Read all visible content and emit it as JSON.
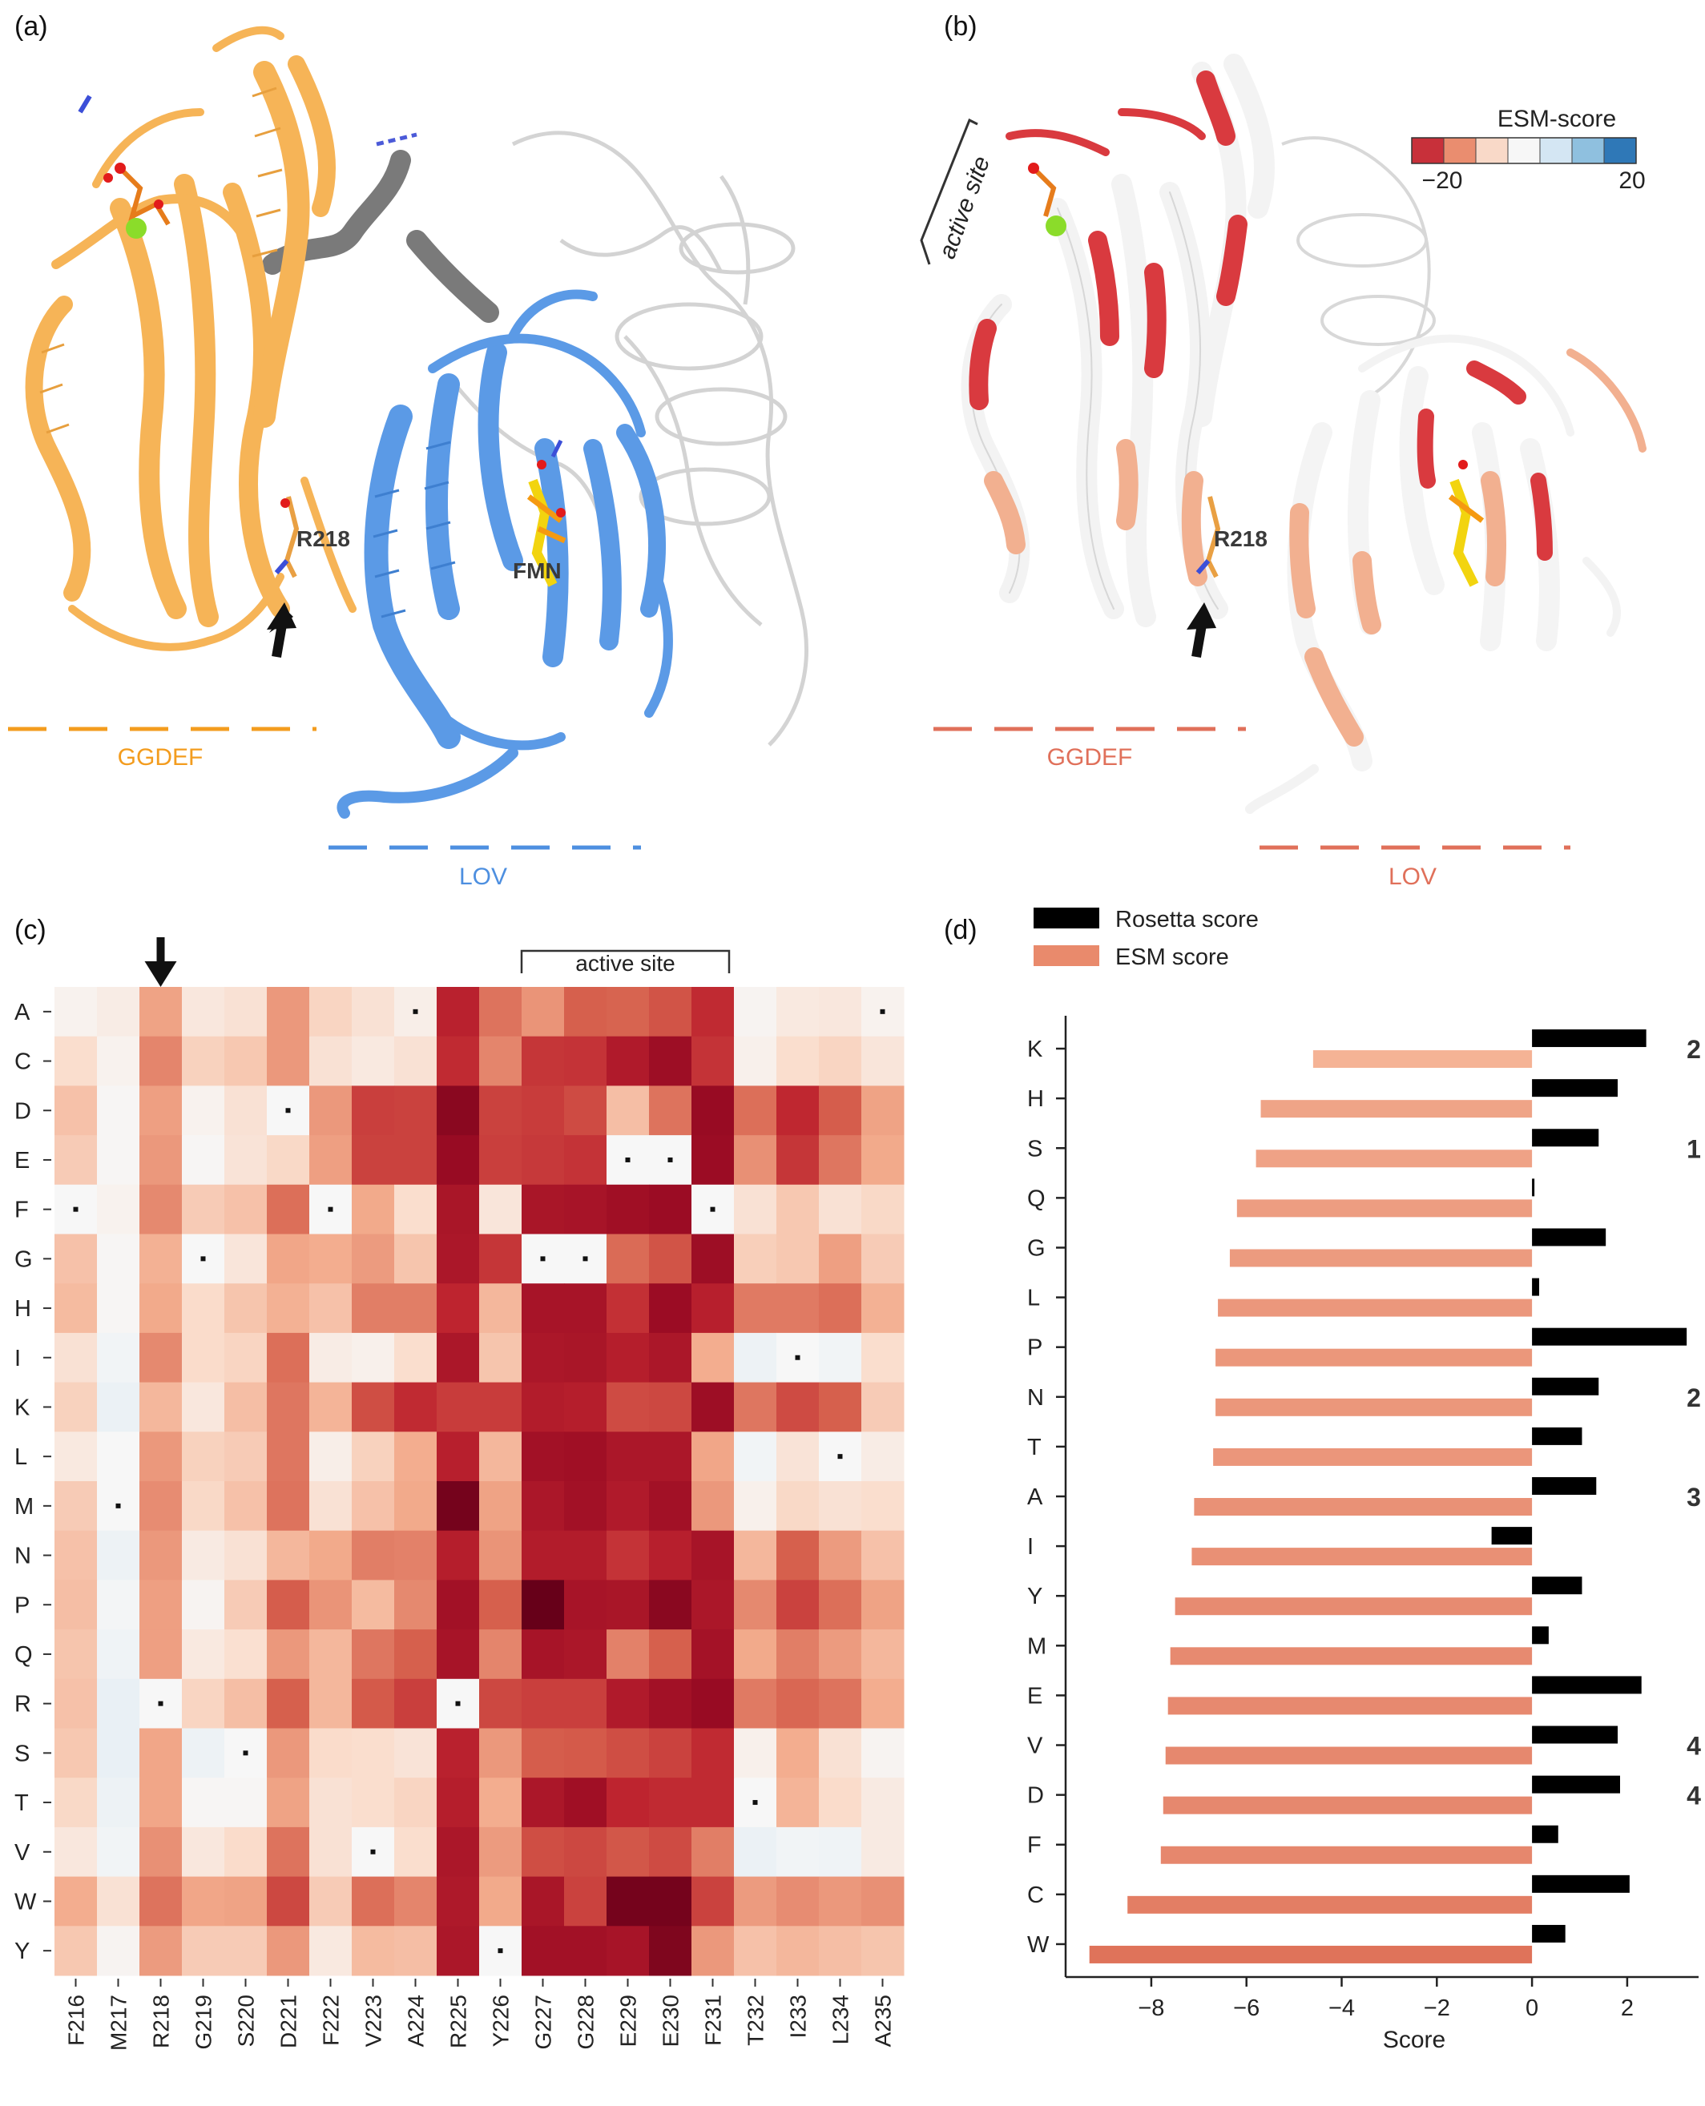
{
  "panels": {
    "a": {
      "label": "(a)",
      "residue_label": "R218",
      "cofactor_label": "FMN",
      "domain_labels": [
        "GGDEF",
        "LOV"
      ],
      "colors": {
        "ggdef": "#f6b457",
        "lov": "#5b9ae6",
        "linker": "#7a7a7a",
        "partner": "#d9d9d9",
        "ggdef_label": "#f39c1e",
        "lov_label": "#4d8fe0"
      }
    },
    "b": {
      "label": "(b)",
      "residue_label": "R218",
      "active_site_label": "active site",
      "domain_labels": [
        "GGDEF",
        "LOV"
      ],
      "colorbar": {
        "title": "ESM-score",
        "min_label": "−20",
        "max_label": "20",
        "colors": [
          "#c8303a",
          "#ea8d6f",
          "#f9d9c8",
          "#f7f7f7",
          "#d4e6f3",
          "#8fc0df",
          "#2f78b7"
        ]
      },
      "colors": {
        "label": "#e0705a",
        "hot": "#d93a3f",
        "warm": "#f2b090",
        "cool": "#ffffff"
      }
    },
    "c": {
      "label": "(c)",
      "active_site_label": "active site"
    },
    "d": {
      "label": "(d)"
    }
  },
  "chart_data": [
    {
      "type": "heatmap",
      "panel": "c",
      "title": "",
      "xlabel": "",
      "ylabel": "",
      "grid": false,
      "x": [
        "F216",
        "M217",
        "R218",
        "G219",
        "S220",
        "D221",
        "F222",
        "V223",
        "A224",
        "R225",
        "Y226",
        "G227",
        "G228",
        "E229",
        "E230",
        "F231",
        "T232",
        "I233",
        "L234",
        "A235"
      ],
      "y": [
        "A",
        "C",
        "D",
        "E",
        "F",
        "G",
        "H",
        "I",
        "K",
        "L",
        "M",
        "N",
        "P",
        "Q",
        "R",
        "S",
        "T",
        "V",
        "W",
        "Y"
      ],
      "values": [
        [
          0.3,
          0.6,
          3.2,
          0.9,
          1.2,
          3.5,
          1.7,
          1.2,
          0.5,
          7.2,
          4.5,
          3.6,
          5.0,
          4.9,
          5.4,
          6.8,
          0.2,
          0.8,
          0.9,
          0.3
        ],
        [
          1.4,
          0.3,
          4.0,
          1.8,
          2.1,
          3.5,
          1.2,
          0.8,
          1.2,
          6.8,
          4.0,
          6.4,
          6.5,
          7.6,
          8.4,
          6.5,
          0.4,
          1.4,
          1.7,
          1.0
        ],
        [
          2.3,
          0.1,
          3.3,
          0.3,
          1.2,
          0.0,
          3.5,
          6.1,
          6.0,
          9.0,
          6.0,
          6.2,
          5.7,
          2.4,
          4.5,
          8.6,
          4.6,
          6.9,
          5.1,
          3.2
        ],
        [
          2.0,
          0.1,
          3.5,
          0.1,
          1.1,
          1.6,
          3.3,
          6.0,
          6.0,
          8.6,
          6.1,
          6.3,
          6.5,
          0.0,
          0.0,
          8.5,
          3.7,
          6.4,
          4.4,
          3.0
        ],
        [
          0.0,
          0.3,
          3.9,
          2.0,
          2.3,
          4.6,
          0.0,
          3.0,
          1.4,
          7.9,
          1.0,
          7.9,
          8.0,
          8.3,
          8.5,
          0.0,
          1.2,
          2.1,
          1.2,
          1.6
        ],
        [
          2.3,
          0.1,
          2.8,
          0.0,
          1.0,
          3.1,
          2.9,
          3.4,
          2.2,
          7.8,
          6.4,
          0.0,
          0.0,
          4.7,
          5.4,
          8.4,
          1.9,
          2.1,
          3.3,
          2.0
        ],
        [
          2.5,
          0.1,
          3.0,
          1.5,
          2.2,
          2.8,
          2.3,
          4.2,
          4.2,
          7.0,
          2.6,
          8.0,
          8.0,
          6.6,
          8.5,
          7.3,
          4.3,
          4.3,
          4.6,
          2.8
        ],
        [
          1.2,
          -0.3,
          3.9,
          1.5,
          1.7,
          4.6,
          0.6,
          0.4,
          1.4,
          7.8,
          2.2,
          7.8,
          7.9,
          7.4,
          7.8,
          2.9,
          -0.5,
          0.0,
          -0.3,
          1.4
        ],
        [
          1.8,
          -0.6,
          2.6,
          0.9,
          2.4,
          4.4,
          2.7,
          5.6,
          6.8,
          6.2,
          6.2,
          7.5,
          7.4,
          5.7,
          5.8,
          8.4,
          4.4,
          5.7,
          5.0,
          2.0
        ],
        [
          0.8,
          0.0,
          3.5,
          1.8,
          2.0,
          4.4,
          0.5,
          1.8,
          2.9,
          7.3,
          2.6,
          8.2,
          8.3,
          7.8,
          7.8,
          3.1,
          -0.3,
          1.1,
          0.0,
          0.6
        ],
        [
          2.0,
          0.0,
          3.8,
          1.6,
          2.3,
          4.5,
          1.2,
          2.3,
          3.0,
          9.6,
          3.2,
          7.8,
          8.2,
          7.6,
          8.2,
          3.5,
          0.4,
          1.6,
          1.2,
          1.4
        ],
        [
          2.3,
          -0.5,
          3.5,
          0.7,
          1.2,
          2.6,
          3.0,
          4.2,
          4.1,
          7.4,
          3.6,
          7.5,
          7.5,
          6.5,
          7.3,
          8.0,
          2.6,
          5.0,
          3.4,
          2.3
        ],
        [
          2.4,
          -0.2,
          3.3,
          0.2,
          2.0,
          5.1,
          3.6,
          2.5,
          3.9,
          8.2,
          5.0,
          10.0,
          8.0,
          7.9,
          9.0,
          7.8,
          3.9,
          6.0,
          4.6,
          3.2
        ],
        [
          2.2,
          -0.4,
          3.3,
          0.8,
          1.3,
          3.5,
          2.6,
          4.4,
          5.0,
          8.0,
          4.0,
          8.0,
          7.8,
          4.1,
          5.0,
          8.1,
          3.0,
          4.2,
          3.4,
          2.6
        ],
        [
          2.3,
          -0.7,
          0.0,
          1.7,
          2.4,
          5.0,
          2.6,
          5.2,
          6.1,
          0.0,
          5.8,
          6.1,
          6.1,
          7.6,
          8.2,
          8.6,
          4.3,
          4.8,
          4.5,
          2.9
        ],
        [
          2.1,
          -0.7,
          3.1,
          -0.5,
          0.0,
          3.5,
          1.5,
          1.4,
          1.1,
          7.2,
          3.5,
          5.1,
          5.2,
          5.6,
          6.0,
          6.8,
          0.4,
          2.9,
          1.2,
          0.2
        ],
        [
          1.6,
          -0.5,
          3.1,
          0.1,
          0.1,
          3.2,
          1.2,
          1.4,
          1.7,
          7.4,
          2.9,
          7.8,
          8.3,
          7.0,
          6.8,
          6.8,
          0.0,
          2.7,
          1.5,
          0.7
        ],
        [
          0.9,
          -0.3,
          3.7,
          0.9,
          1.5,
          4.5,
          1.2,
          0.0,
          1.4,
          7.8,
          3.4,
          5.6,
          5.8,
          5.3,
          5.7,
          4.2,
          -0.6,
          -0.3,
          -0.4,
          0.7
        ],
        [
          2.9,
          1.2,
          4.5,
          3.1,
          3.2,
          5.8,
          2.0,
          4.6,
          4.0,
          7.7,
          3.0,
          7.9,
          6.0,
          9.6,
          9.6,
          6.0,
          3.4,
          3.8,
          3.5,
          3.7
        ],
        [
          2.1,
          0.2,
          3.4,
          2.0,
          2.0,
          3.5,
          0.8,
          2.5,
          2.4,
          7.8,
          0.0,
          8.2,
          8.2,
          8.0,
          9.3,
          3.5,
          2.3,
          2.6,
          2.4,
          2.2
        ]
      ],
      "wildtype_markers": [
        [
          0,
          8
        ],
        [
          0,
          19
        ],
        [
          2,
          5
        ],
        [
          3,
          13
        ],
        [
          3,
          14
        ],
        [
          4,
          0
        ],
        [
          4,
          6
        ],
        [
          4,
          15
        ],
        [
          5,
          3
        ],
        [
          5,
          11
        ],
        [
          5,
          12
        ],
        [
          7,
          17
        ],
        [
          9,
          18
        ],
        [
          10,
          1
        ],
        [
          14,
          2
        ],
        [
          14,
          9
        ],
        [
          15,
          4
        ],
        [
          16,
          16
        ],
        [
          17,
          7
        ],
        [
          19,
          10
        ]
      ],
      "highlight_column": 2,
      "active_site_columns": [
        11,
        15
      ]
    },
    {
      "type": "bar",
      "orientation": "horizontal",
      "panel": "d",
      "title": "",
      "xlabel": "Score",
      "ylabel": "",
      "xlim": [
        -9.8,
        3.5
      ],
      "grid": false,
      "legend": "top-left",
      "categories": [
        "K",
        "H",
        "S",
        "Q",
        "G",
        "L",
        "P",
        "N",
        "T",
        "A",
        "I",
        "Y",
        "M",
        "E",
        "V",
        "D",
        "F",
        "C",
        "W"
      ],
      "series": [
        {
          "name": "Rosetta score",
          "color": "#000000",
          "values": [
            2.4,
            1.8,
            1.4,
            0.0,
            1.55,
            0.15,
            3.25,
            1.4,
            1.05,
            1.35,
            -0.85,
            1.05,
            0.35,
            2.3,
            1.8,
            1.85,
            0.55,
            2.05,
            0.7
          ]
        },
        {
          "name": "ESM score",
          "color": "#e98a6c",
          "values": [
            -4.6,
            -5.7,
            -5.8,
            -6.2,
            -6.35,
            -6.6,
            -6.65,
            -6.65,
            -6.7,
            -7.1,
            -7.15,
            -7.5,
            -7.6,
            -7.65,
            -7.7,
            -7.75,
            -7.8,
            -8.5,
            -9.3
          ]
        }
      ],
      "annotations": [
        {
          "category": "K",
          "text": "2"
        },
        {
          "category": "S",
          "text": "1"
        },
        {
          "category": "N",
          "text": "2"
        },
        {
          "category": "A",
          "text": "3"
        },
        {
          "category": "V",
          "text": "4"
        },
        {
          "category": "D",
          "text": "4"
        }
      ]
    }
  ]
}
